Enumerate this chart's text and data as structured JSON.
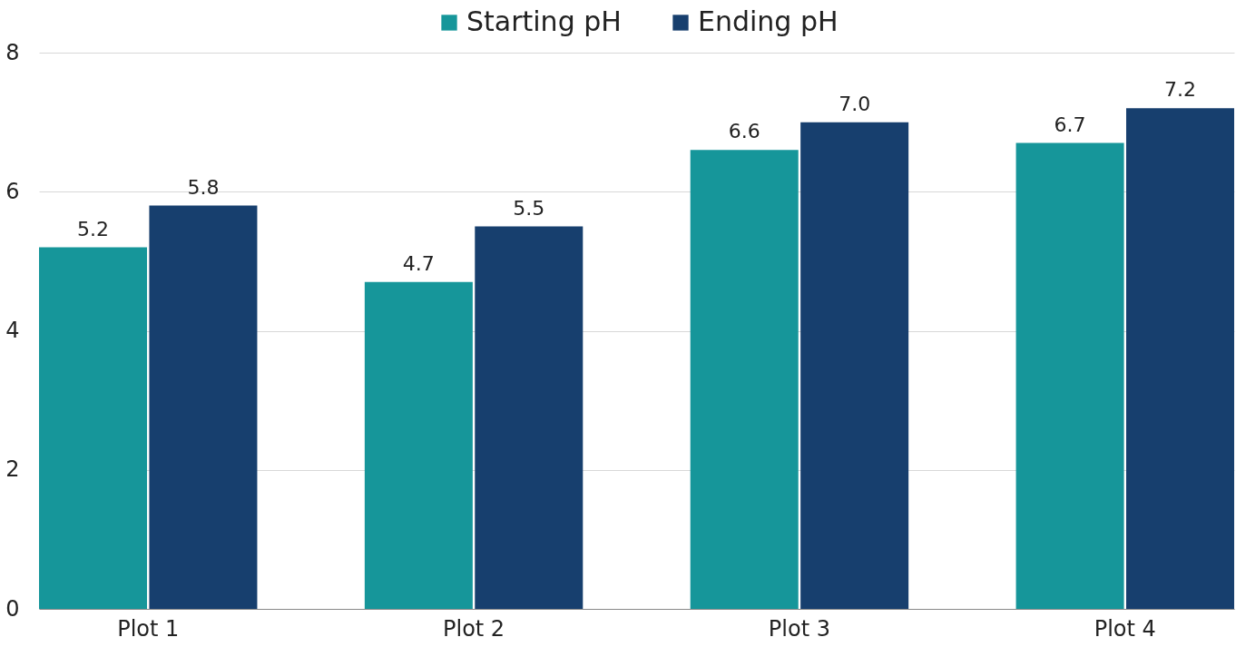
{
  "chart_data": {
    "type": "bar",
    "categories": [
      "Plot 1",
      "Plot 2",
      "Plot 3",
      "Plot 4"
    ],
    "series": [
      {
        "name": "Starting pH",
        "color": "#16969a",
        "values": [
          5.2,
          4.7,
          6.6,
          6.7
        ],
        "value_labels": [
          "5.2",
          "4.7",
          "6.6",
          "6.7"
        ]
      },
      {
        "name": "Ending pH",
        "color": "#173f6e",
        "values": [
          5.8,
          5.5,
          7.0,
          7.2
        ],
        "value_labels": [
          "5.8",
          "5.5",
          "7.0",
          "7.2"
        ]
      }
    ],
    "ylim": [
      0,
      8
    ],
    "yticks": [
      0,
      2,
      4,
      6,
      8
    ],
    "grid": "y",
    "legend": "top"
  }
}
